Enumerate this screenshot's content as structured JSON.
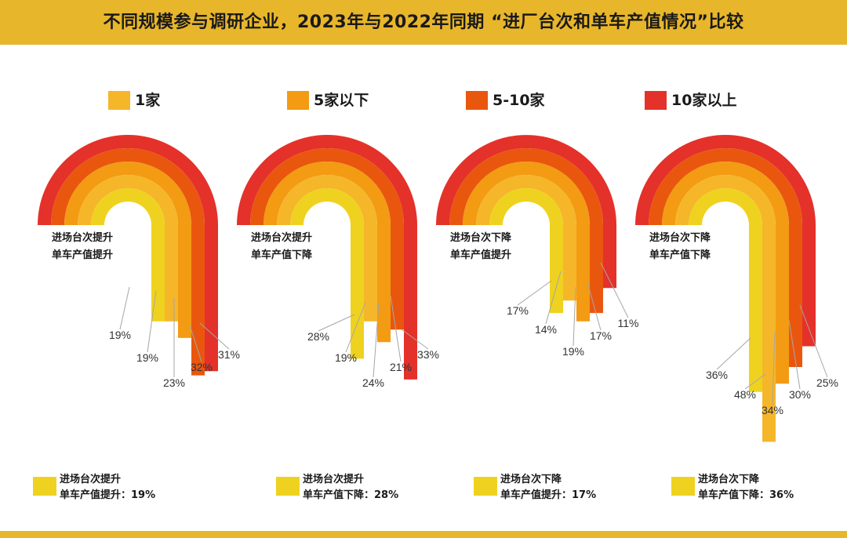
{
  "title": "不同规模参与调研企业，2023年与2022年同期 “进厂台次和单车产值情况”比较",
  "legend": [
    {
      "label": "1家",
      "color": "#F5B62A"
    },
    {
      "label": "5家以下",
      "color": "#F39B12"
    },
    {
      "label": "5-10家",
      "color": "#E9570F"
    },
    {
      "label": "10家以上",
      "color": "#E4312A"
    }
  ],
  "inner_color": "#EFD21F",
  "chart_data": {
    "type": "bar",
    "series_order": [
      "inner",
      "1家",
      "5家以下",
      "5-10家",
      "10家以上"
    ],
    "panels": [
      {
        "line1": "进场台次提升",
        "line2": "单车产值提升",
        "values": [
          19,
          19,
          23,
          32,
          31
        ],
        "note_line1": "进场台次提升",
        "note_line2": "单车产值提升：19%"
      },
      {
        "line1": "进场台次提升",
        "line2": "单车产值下降",
        "values": [
          28,
          19,
          24,
          21,
          33
        ],
        "note_line1": "进场台次提升",
        "note_line2": "单车产值下降：28%"
      },
      {
        "line1": "进场台次下降",
        "line2": "单车产值提升",
        "values": [
          17,
          14,
          19,
          17,
          11
        ],
        "note_line1": "进场台次下降",
        "note_line2": "单车产值提升：17%"
      },
      {
        "line1": "进场台次下降",
        "line2": "单车产值下降",
        "values": [
          36,
          48,
          34,
          30,
          25
        ],
        "note_line1": "进场台次下降",
        "note_line2": "单车产值下降：36%"
      }
    ]
  }
}
